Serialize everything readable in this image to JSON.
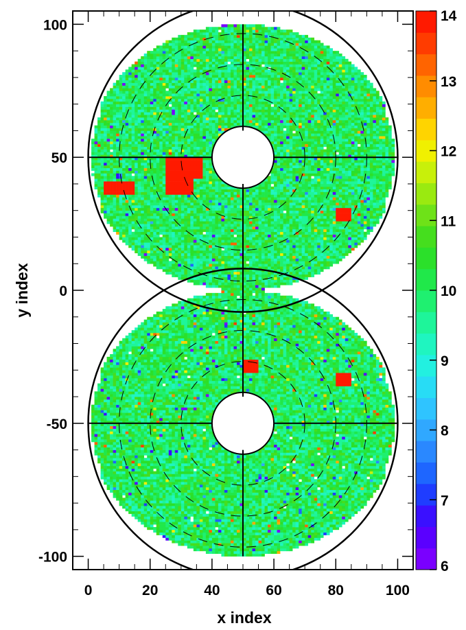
{
  "chart_data": {
    "type": "heatmap",
    "title": "",
    "xlabel": "x index",
    "ylabel": "y index",
    "xlim": [
      -5,
      105
    ],
    "ylim": [
      -105,
      105
    ],
    "x_ticks": [
      0,
      20,
      40,
      60,
      80,
      100
    ],
    "y_ticks": [
      -100,
      -50,
      0,
      50,
      100
    ],
    "grid": false,
    "colorbar": {
      "min": 6,
      "max": 14,
      "ticks": [
        6,
        7,
        8,
        9,
        10,
        11,
        12,
        13,
        14
      ],
      "colors": [
        "#7a00ff",
        "#5a00ff",
        "#3a10ff",
        "#1f3dff",
        "#1e66ff",
        "#2a88ff",
        "#30a8ff",
        "#2fc4ff",
        "#28dcf5",
        "#22f0e0",
        "#1ff5c0",
        "#1ef59a",
        "#1ff070",
        "#20e84a",
        "#2be02a",
        "#45de1e",
        "#6ee218",
        "#9aea10",
        "#c8f00a",
        "#f0f000",
        "#ffd400",
        "#ffae00",
        "#ff8c00",
        "#ff6400",
        "#ff3c00",
        "#ff1a00"
      ]
    },
    "typical_value": 10,
    "regions": [
      {
        "name": "upper-endcap",
        "center": [
          50,
          50
        ],
        "outer_radius": 50,
        "inner_radius": 10
      },
      {
        "name": "lower-endcap",
        "center": [
          50,
          -50
        ],
        "outer_radius": 50,
        "inner_radius": 10
      }
    ],
    "hot_spots": [
      {
        "x_range": [
          25,
          34
        ],
        "y_range": [
          36,
          50
        ],
        "value": 14
      },
      {
        "x_range": [
          34,
          37
        ],
        "y_range": [
          42,
          50
        ],
        "value": 14
      },
      {
        "x_range": [
          5,
          15
        ],
        "y_range": [
          36,
          41
        ],
        "value": 14
      },
      {
        "x_range": [
          80,
          85
        ],
        "y_range": [
          26,
          31
        ],
        "value": 14
      },
      {
        "x_range": [
          50,
          55
        ],
        "y_range": [
          -31,
          -26
        ],
        "value": 14
      },
      {
        "x_range": [
          80,
          85
        ],
        "y_range": [
          -36,
          -31
        ],
        "value": 14
      }
    ]
  }
}
